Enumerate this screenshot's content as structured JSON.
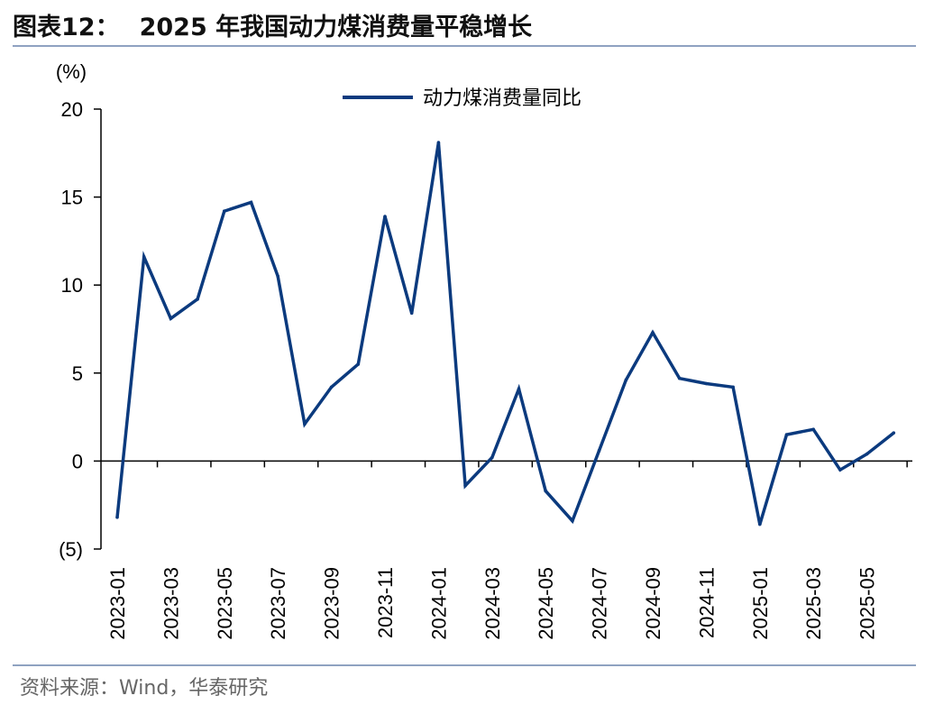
{
  "header": {
    "figure_label": "图表12：",
    "title": "2025 年我国动力煤消费量平稳增长"
  },
  "footer": {
    "source": "资料来源：Wind，华泰研究"
  },
  "colors": {
    "series": "#0b3a7e",
    "rule": "#8fa2c1",
    "axis": "#000000"
  },
  "chart_data": {
    "type": "line",
    "title": "2025 年我国动力煤消费量平稳增长",
    "ylabel": "(%)",
    "xlabel": "",
    "ylim": [
      -5,
      20
    ],
    "yticks": [
      -5,
      0,
      5,
      10,
      15,
      20
    ],
    "ytick_labels": [
      "(5)",
      "0",
      "5",
      "10",
      "15",
      "20"
    ],
    "grid": false,
    "legend_position": "top-center",
    "x": [
      "2023-01",
      "2023-02",
      "2023-03",
      "2023-04",
      "2023-05",
      "2023-06",
      "2023-07",
      "2023-08",
      "2023-09",
      "2023-10",
      "2023-11",
      "2023-12",
      "2024-01",
      "2024-02",
      "2024-03",
      "2024-04",
      "2024-05",
      "2024-06",
      "2024-07",
      "2024-08",
      "2024-09",
      "2024-10",
      "2024-11",
      "2024-12",
      "2025-01",
      "2025-02",
      "2025-03",
      "2025-04",
      "2025-05",
      "2025-06"
    ],
    "xtick_labels": [
      "2023-01",
      "2023-03",
      "2023-05",
      "2023-07",
      "2023-09",
      "2023-11",
      "2024-01",
      "2024-03",
      "2024-05",
      "2024-07",
      "2024-09",
      "2024-11",
      "2025-01",
      "2025-03",
      "2025-05"
    ],
    "series": [
      {
        "name": "动力煤消费量同比",
        "color": "#0b3a7e",
        "values": [
          -3.2,
          11.6,
          8.1,
          9.2,
          14.2,
          14.7,
          10.5,
          2.1,
          4.2,
          5.5,
          13.9,
          8.4,
          18.1,
          -1.4,
          0.2,
          4.1,
          -1.7,
          -3.4,
          0.6,
          4.6,
          7.3,
          4.7,
          4.4,
          4.2,
          -3.6,
          1.5,
          1.8,
          -0.5,
          0.4,
          1.6
        ]
      }
    ]
  }
}
